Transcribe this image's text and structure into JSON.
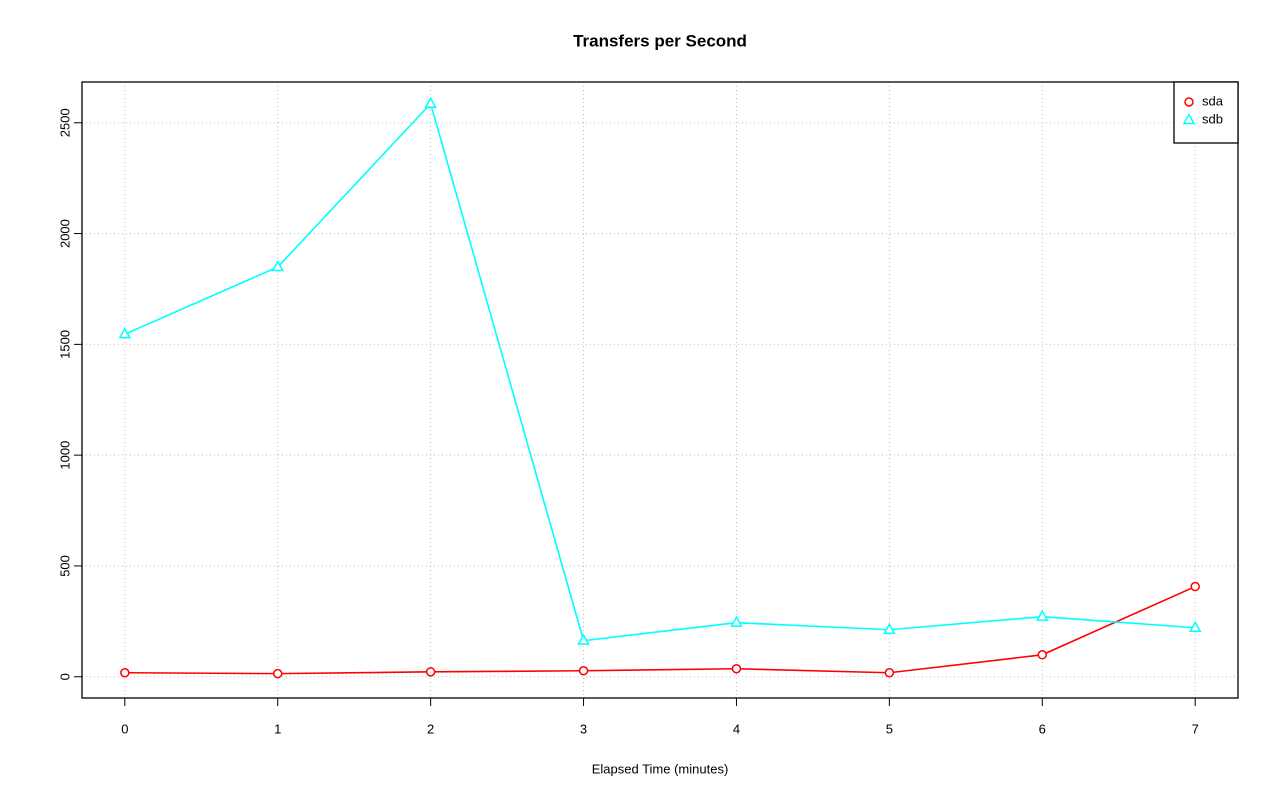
{
  "chart_data": {
    "type": "line",
    "title": "Transfers per Second",
    "x_label": "Elapsed Time (minutes)",
    "x": [
      0,
      1,
      2,
      3,
      4,
      5,
      6,
      7
    ],
    "series": [
      {
        "name": "sda",
        "color": "#ff0000",
        "marker": "circle",
        "values": [
          18,
          14,
          22,
          27,
          36,
          18,
          99,
          407
        ]
      },
      {
        "name": "sdb",
        "color": "#00ffff",
        "marker": "triangle",
        "values": [
          1546,
          1849,
          2586,
          163,
          244,
          212,
          271,
          221
        ]
      }
    ],
    "xlim": [
      -0.28,
      7.28
    ],
    "xticks": [
      0,
      1,
      2,
      3,
      4,
      5,
      6,
      7
    ],
    "ylim": [
      -96,
      2684
    ],
    "yticks": [
      0,
      500,
      1000,
      1500,
      2000,
      2500
    ],
    "grid": true,
    "legend": "top-right"
  }
}
